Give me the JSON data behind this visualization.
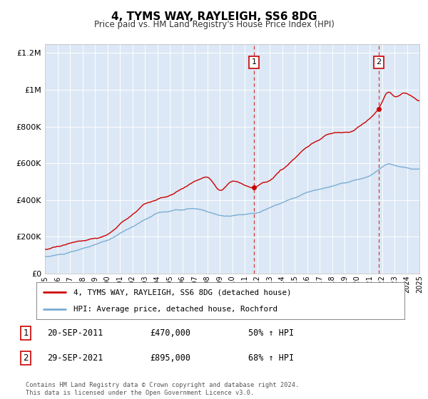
{
  "title": "4, TYMS WAY, RAYLEIGH, SS6 8DG",
  "subtitle": "Price paid vs. HM Land Registry's House Price Index (HPI)",
  "plot_bg_color": "#dce8f5",
  "ylim": [
    0,
    1250000
  ],
  "xlim_start": 1995,
  "xlim_end": 2025,
  "yticks": [
    0,
    200000,
    400000,
    600000,
    800000,
    1000000,
    1200000
  ],
  "ytick_labels": [
    "£0",
    "£200K",
    "£400K",
    "£600K",
    "£800K",
    "£1M",
    "£1.2M"
  ],
  "xticks": [
    1995,
    1996,
    1997,
    1998,
    1999,
    2000,
    2001,
    2002,
    2003,
    2004,
    2005,
    2006,
    2007,
    2008,
    2009,
    2010,
    2011,
    2012,
    2013,
    2014,
    2015,
    2016,
    2017,
    2018,
    2019,
    2020,
    2021,
    2022,
    2023,
    2024,
    2025
  ],
  "red_line_color": "#cc0000",
  "blue_line_color": "#7aadd4",
  "marker1_x": 2011.75,
  "marker1_y": 470000,
  "marker2_x": 2021.75,
  "marker2_y": 895000,
  "vline1_x": 2011.75,
  "vline2_x": 2021.75,
  "legend_label_red": "4, TYMS WAY, RAYLEIGH, SS6 8DG (detached house)",
  "legend_label_blue": "HPI: Average price, detached house, Rochford",
  "sale1_date": "20-SEP-2011",
  "sale1_price": "£470,000",
  "sale1_pct": "50% ↑ HPI",
  "sale2_date": "29-SEP-2021",
  "sale2_price": "£895,000",
  "sale2_pct": "68% ↑ HPI",
  "footer": "Contains HM Land Registry data © Crown copyright and database right 2024.\nThis data is licensed under the Open Government Licence v3.0."
}
